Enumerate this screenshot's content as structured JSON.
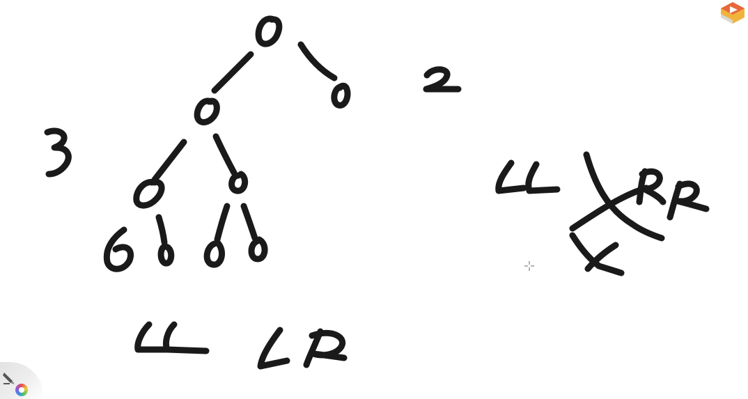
{
  "header": {
    "caption": "· · · · · · · · · · · ·"
  },
  "icons": {
    "player_logo": "video-player-logo-icon",
    "pen_tool": "pen-icon",
    "color_picker": "color-wheel-icon",
    "cursor": "crosshair-cursor-icon"
  },
  "colors": {
    "ink": "#1a1a1a",
    "canvas": "#ffffff",
    "logo_primary": "#e8683a",
    "logo_secondary": "#f2b33d"
  }
}
